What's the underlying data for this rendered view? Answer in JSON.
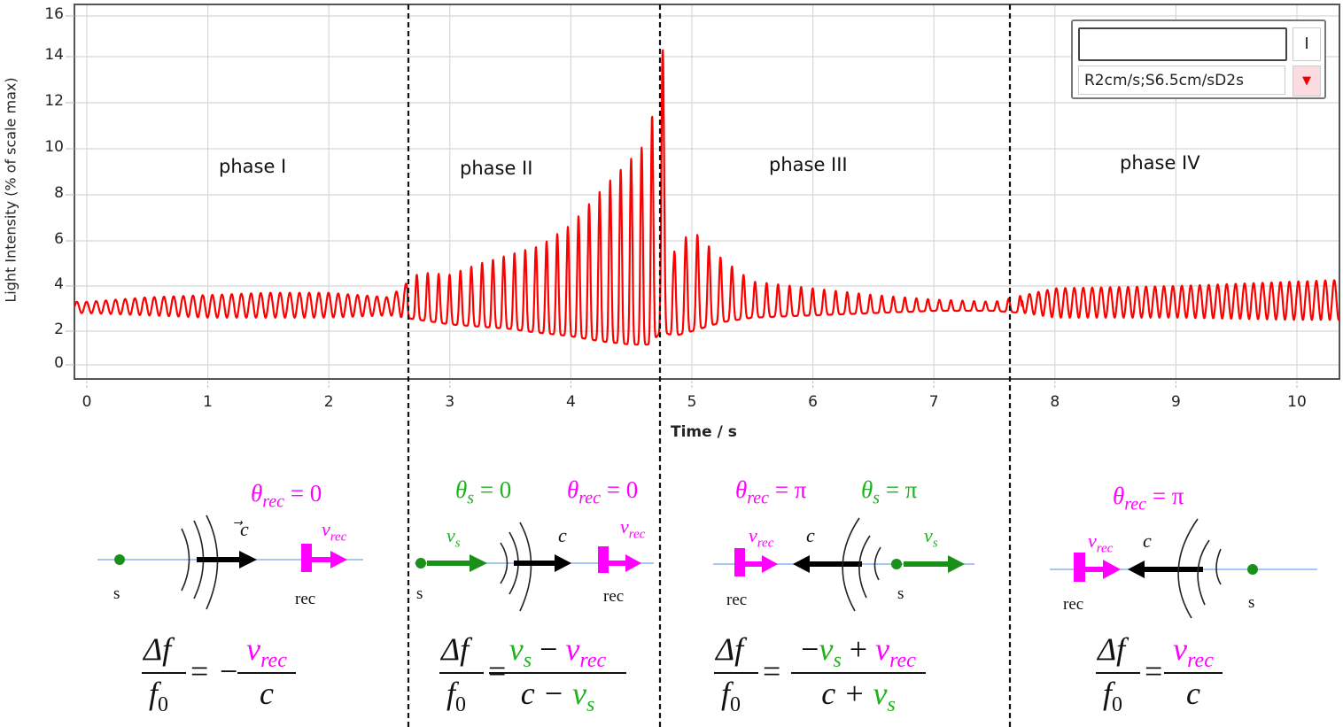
{
  "chart_data": {
    "type": "line",
    "title": "",
    "xlabel": "Time / s",
    "ylabel": "Light Intensity (% of scale max)",
    "xlim": [
      -0.1,
      10.5
    ],
    "ylim": [
      -0.5,
      16.5
    ],
    "x_ticks": [
      0,
      1,
      2,
      3,
      4,
      5,
      6,
      7,
      8,
      9,
      10
    ],
    "y_ticks": [
      0,
      2,
      4,
      6,
      8,
      10,
      12,
      14,
      16
    ],
    "grid": true,
    "series": [
      {
        "name": "Light Intensity",
        "color": "#ff0000",
        "description": "Oscillating interference signal. Phase I: ~3.0 baseline, amplitude ~0.3-0.5. Phase II: growing peaks from ~4.5 to ~15.3 at t~4.75 s, troughs falling to ~1.2. Phase III: decaying peaks from ~6.5 to ~3.3. Phase IV: steady oscillation ~2.7-4.2.",
        "envelope": {
          "t": [
            0.0,
            0.5,
            1.0,
            1.5,
            2.0,
            2.5,
            2.75,
            3.0,
            3.25,
            3.5,
            3.75,
            4.0,
            4.25,
            4.5,
            4.65,
            4.75,
            4.85,
            5.0,
            5.25,
            5.5,
            6.0,
            6.5,
            7.0,
            7.5,
            7.75,
            8.0,
            9.0,
            10.0,
            10.5
          ],
          "max": [
            3.3,
            3.5,
            3.6,
            3.7,
            3.7,
            3.5,
            4.6,
            4.5,
            5.0,
            5.4,
            5.8,
            6.7,
            8.2,
            9.6,
            10.4,
            15.3,
            5.5,
            6.5,
            5.2,
            4.2,
            3.9,
            3.6,
            3.4,
            3.3,
            3.6,
            3.9,
            4.0,
            4.2,
            4.3
          ],
          "min": [
            2.8,
            2.7,
            2.6,
            2.6,
            2.6,
            2.7,
            2.5,
            2.3,
            2.2,
            2.1,
            1.9,
            1.7,
            1.4,
            1.2,
            1.2,
            2.0,
            1.7,
            2.0,
            2.4,
            2.6,
            2.7,
            2.8,
            2.9,
            2.9,
            2.8,
            2.6,
            2.6,
            2.5,
            2.5
          ]
        }
      }
    ],
    "phase_boundaries_s": [
      2.65,
      4.73,
      7.73
    ],
    "annotations": [
      "phase I",
      "phase II",
      "phase III",
      "phase IV"
    ]
  },
  "axes": {
    "ylabel": "Light Intensity (% of scale max)",
    "xlabel": "Time / s",
    "y_ticks": [
      "16",
      "14",
      "12",
      "10",
      "8",
      "6",
      "4",
      "2",
      "0"
    ],
    "x_ticks": [
      "0",
      "1",
      "2",
      "3",
      "4",
      "5",
      "6",
      "7",
      "8",
      "9",
      "10"
    ]
  },
  "phases": [
    {
      "label": "phase I"
    },
    {
      "label": "phase II"
    },
    {
      "label": "phase III"
    },
    {
      "label": "phase IV"
    }
  ],
  "widget": {
    "input_value": "",
    "button_label": "I",
    "select_value": "R2cm/s;S6.5cm/sD2s",
    "dropdown_icon": "▼"
  },
  "diagrams": {
    "p1": {
      "theta_rec": "θ",
      "theta_rec_sub": "rec",
      "theta_rec_val": " = 0",
      "c": "c",
      "v_rec": "v",
      "v_rec_sub": "rec",
      "s": "s",
      "rec": "rec"
    },
    "p2": {
      "theta_s": "θ",
      "theta_s_sub": "s",
      "theta_s_val": " = 0",
      "theta_rec": "θ",
      "theta_rec_sub": "rec",
      "theta_rec_val": " = 0",
      "v_s": "v",
      "v_s_sub": "s",
      "c": "c",
      "v_rec": "v",
      "v_rec_sub": "rec",
      "s": "s",
      "rec": "rec"
    },
    "p3": {
      "theta_rec": "θ",
      "theta_rec_sub": "rec",
      "theta_rec_val": " = π",
      "theta_s": "θ",
      "theta_s_sub": "s",
      "theta_s_val": " = π",
      "v_rec": "v",
      "v_rec_sub": "rec",
      "c": "c",
      "v_s": "v",
      "v_s_sub": "s",
      "s": "s",
      "rec": "rec"
    },
    "p4": {
      "theta_rec": "θ",
      "theta_rec_sub": "rec",
      "theta_rec_val": " = π",
      "v_rec": "v",
      "v_rec_sub": "rec",
      "c": "c",
      "s": "s",
      "rec": "rec"
    }
  },
  "formulas": {
    "lhs_num": "Δf",
    "lhs_den": "f",
    "lhs_den_sub": "0",
    "eq": "=",
    "p1": {
      "sign": "−",
      "num": [
        {
          "t": "v",
          "c": "mag"
        },
        {
          "t": "rec",
          "c": "mag",
          "sub": true
        }
      ],
      "den": "c"
    },
    "p2": {
      "num": [
        {
          "t": "v",
          "c": "grn"
        },
        {
          "t": "s",
          "c": "grn",
          "sub": true
        },
        {
          "t": " − ",
          "c": "blk"
        },
        {
          "t": "v",
          "c": "mag"
        },
        {
          "t": "rec",
          "c": "mag",
          "sub": true
        }
      ],
      "den": [
        {
          "t": "c − ",
          "c": "blk"
        },
        {
          "t": "v",
          "c": "grn"
        },
        {
          "t": "s",
          "c": "grn",
          "sub": true
        }
      ]
    },
    "p3": {
      "num": [
        {
          "t": "−",
          "c": "blk"
        },
        {
          "t": "v",
          "c": "grn"
        },
        {
          "t": "s",
          "c": "grn",
          "sub": true
        },
        {
          "t": " + ",
          "c": "blk"
        },
        {
          "t": "v",
          "c": "mag"
        },
        {
          "t": "rec",
          "c": "mag",
          "sub": true
        }
      ],
      "den": [
        {
          "t": "c + ",
          "c": "blk"
        },
        {
          "t": "v",
          "c": "grn"
        },
        {
          "t": "s",
          "c": "grn",
          "sub": true
        }
      ]
    },
    "p4": {
      "num": [
        {
          "t": "v",
          "c": "mag"
        },
        {
          "t": "rec",
          "c": "mag",
          "sub": true
        }
      ],
      "den": "c"
    }
  },
  "colors": {
    "signal": "#ff0000",
    "receiver": "#ff00ff",
    "source": "#1a8f1a",
    "source_label": "#1db31d",
    "axis_line": "#8ab4f0",
    "grid": "#d8d8d8"
  }
}
